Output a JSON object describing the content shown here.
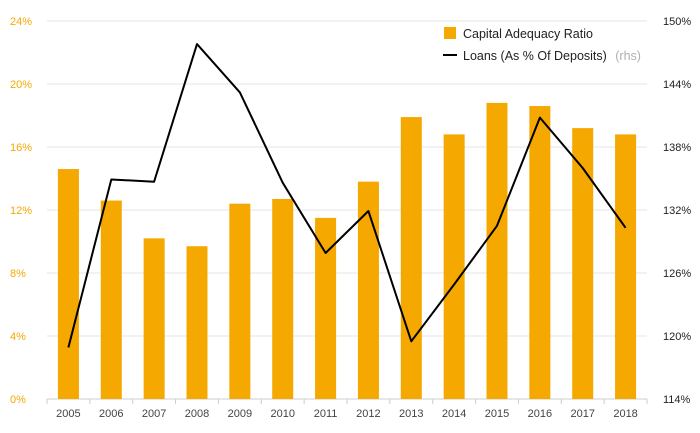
{
  "chart_data": {
    "type": "bar+line",
    "categories": [
      "2005",
      "2006",
      "2007",
      "2008",
      "2009",
      "2010",
      "2011",
      "2012",
      "2013",
      "2014",
      "2015",
      "2016",
      "2017",
      "2018"
    ],
    "series": [
      {
        "name": "Capital Adequacy Ratio",
        "type": "bar",
        "axis": "left",
        "color": "#f5a800",
        "values": [
          14.6,
          12.6,
          10.2,
          9.7,
          12.4,
          12.7,
          11.5,
          13.8,
          17.9,
          16.8,
          18.8,
          18.6,
          17.2,
          16.8
        ]
      },
      {
        "name": "Loans (As % Of Deposits)",
        "name_suffix": "(rhs)",
        "type": "line",
        "axis": "right",
        "color": "#000000",
        "values": [
          118.9,
          134.9,
          134.7,
          147.8,
          143.2,
          134.6,
          127.9,
          131.9,
          119.5,
          124.9,
          130.5,
          140.8,
          136.0,
          130.3
        ]
      }
    ],
    "left_axis": {
      "ylim": [
        0,
        24
      ],
      "ticks": [
        "0%",
        "4%",
        "8%",
        "12%",
        "16%",
        "20%",
        "24%"
      ],
      "tick_values": [
        0,
        4,
        8,
        12,
        16,
        20,
        24
      ]
    },
    "right_axis": {
      "ylim": [
        114,
        150
      ],
      "ticks": [
        "114%",
        "120%",
        "126%",
        "132%",
        "138%",
        "144%",
        "150%"
      ],
      "tick_values": [
        114,
        120,
        126,
        132,
        138,
        144,
        150
      ]
    },
    "grid": true,
    "legend_position": "top-right"
  }
}
